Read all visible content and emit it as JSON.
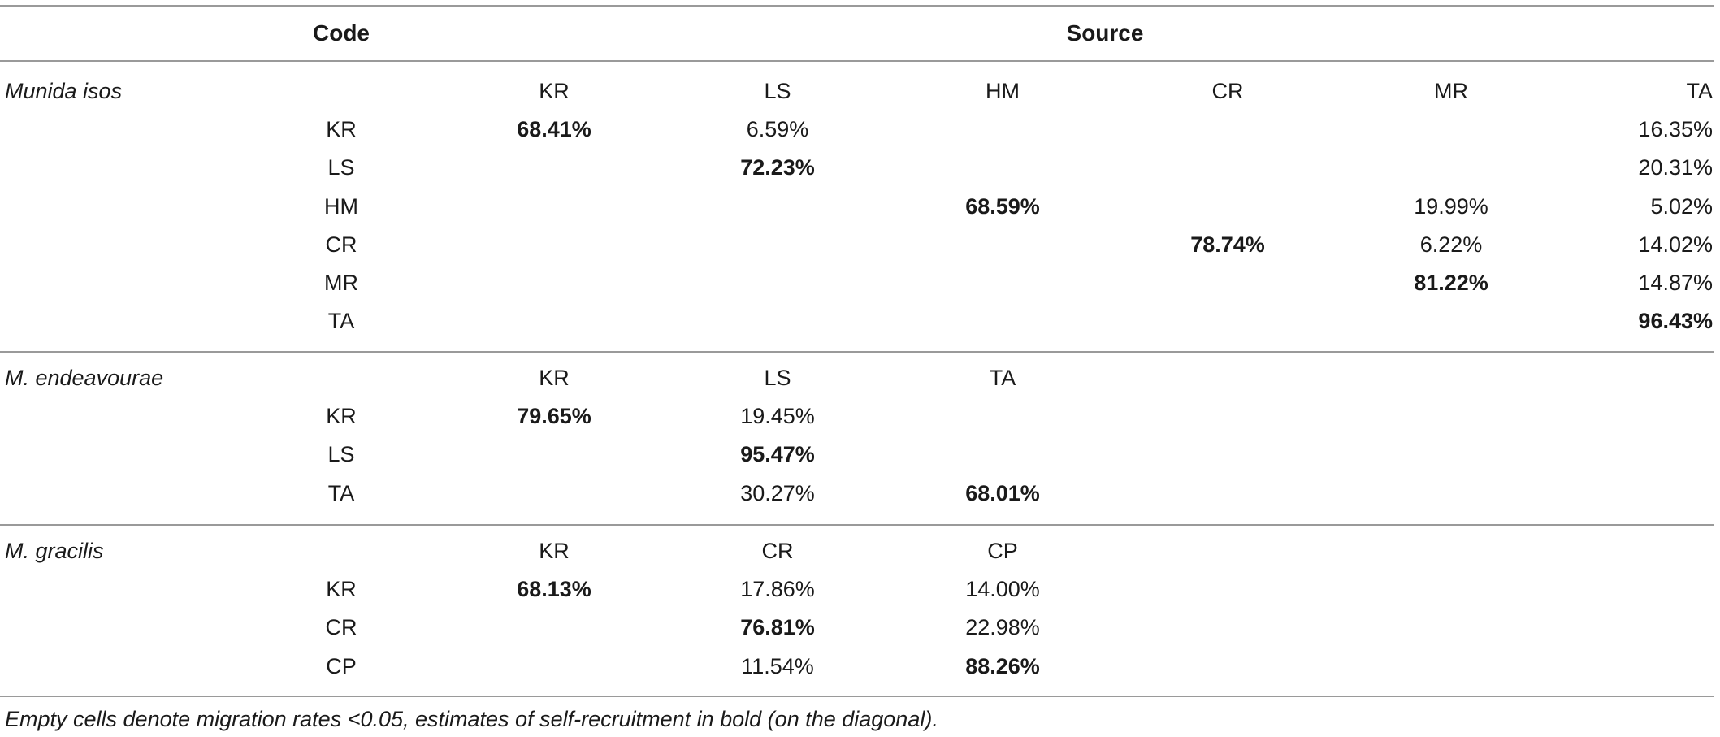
{
  "header": {
    "code_label": "Code",
    "source_label": "Source"
  },
  "groups": [
    {
      "species": "Munida isos",
      "columns": [
        "KR",
        "LS",
        "HM",
        "CR",
        "MR",
        "TA"
      ],
      "rows": [
        {
          "code": "KR",
          "cells": [
            "68.41%",
            "6.59%",
            "",
            "",
            "",
            "16.35%"
          ]
        },
        {
          "code": "LS",
          "cells": [
            "",
            "72.23%",
            "",
            "",
            "",
            "20.31%"
          ]
        },
        {
          "code": "HM",
          "cells": [
            "",
            "",
            "68.59%",
            "",
            "19.99%",
            "5.02%"
          ]
        },
        {
          "code": "CR",
          "cells": [
            "",
            "",
            "",
            "78.74%",
            "6.22%",
            "14.02%"
          ]
        },
        {
          "code": "MR",
          "cells": [
            "",
            "",
            "",
            "",
            "81.22%",
            "14.87%"
          ]
        },
        {
          "code": "TA",
          "cells": [
            "",
            "",
            "",
            "",
            "",
            "96.43%"
          ]
        }
      ]
    },
    {
      "species": "M. endeavourae",
      "columns": [
        "KR",
        "LS",
        "TA"
      ],
      "rows": [
        {
          "code": "KR",
          "cells": [
            "79.65%",
            "19.45%",
            ""
          ]
        },
        {
          "code": "LS",
          "cells": [
            "",
            "95.47%",
            ""
          ]
        },
        {
          "code": "TA",
          "cells": [
            "",
            "30.27%",
            "68.01%"
          ]
        }
      ]
    },
    {
      "species": "M. gracilis",
      "columns": [
        "KR",
        "CR",
        "CP"
      ],
      "rows": [
        {
          "code": "KR",
          "cells": [
            "68.13%",
            "17.86%",
            "14.00%"
          ]
        },
        {
          "code": "CR",
          "cells": [
            "",
            "76.81%",
            "22.98%"
          ]
        },
        {
          "code": "CP",
          "cells": [
            "",
            "11.54%",
            "88.26%"
          ]
        }
      ]
    }
  ],
  "footnote": "Empty cells denote migration rates <0.05, estimates of self-recruitment in bold (on the diagonal)."
}
